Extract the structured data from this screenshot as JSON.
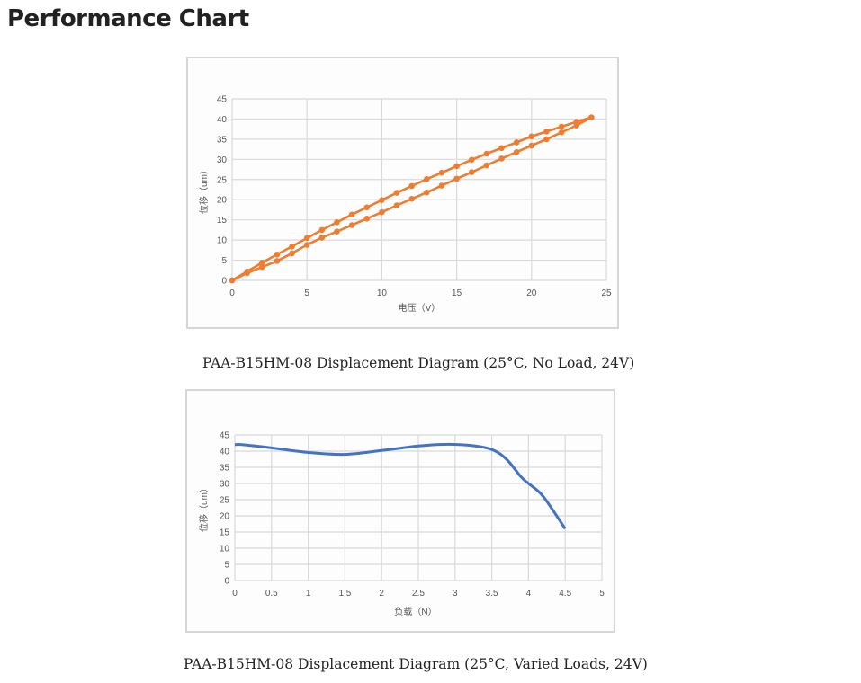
{
  "page_title": "Performance Chart",
  "chart_data": [
    {
      "type": "line",
      "xlabel": "电压（V）",
      "ylabel": "位移（um）",
      "xlim": [
        0,
        25
      ],
      "ylim": [
        0,
        45
      ],
      "xticks": [
        0,
        5,
        10,
        15,
        20,
        25
      ],
      "yticks": [
        0,
        5,
        10,
        15,
        20,
        25,
        30,
        35,
        40,
        45
      ],
      "grid": true,
      "color": "#ED7D31",
      "markers": true,
      "caption": "PAA-B15HM-08 Displacement Diagram (25°C, No Load, 24V)",
      "x": [
        0,
        1,
        2,
        3,
        4,
        5,
        6,
        7,
        8,
        9,
        10,
        11,
        12,
        13,
        14,
        15,
        16,
        17,
        18,
        19,
        20,
        21,
        22,
        23,
        24
      ],
      "series": [
        {
          "values": [
            0,
            2.2,
            4.4,
            6.4,
            8.4,
            10.5,
            12.5,
            14.4,
            16.3,
            18.1,
            19.9,
            21.7,
            23.4,
            25.1,
            26.7,
            28.3,
            29.9,
            31.4,
            32.8,
            34.2,
            35.7,
            36.9,
            38.1,
            39.3,
            40.4
          ]
        },
        {
          "values": [
            0,
            1.8,
            3.3,
            4.8,
            6.7,
            8.8,
            10.6,
            12.1,
            13.7,
            15.3,
            16.9,
            18.6,
            20.2,
            21.8,
            23.5,
            25.2,
            26.8,
            28.5,
            30.2,
            31.8,
            33.4,
            35.0,
            36.7,
            38.4,
            40.4
          ]
        }
      ]
    },
    {
      "type": "line",
      "xlabel": "负载（N）",
      "ylabel": "位移（um）",
      "xlim": [
        0,
        5
      ],
      "ylim": [
        0,
        45
      ],
      "xticks": [
        "0",
        "0.5",
        "1",
        "1.5",
        "2",
        "2.5",
        "3",
        "3.5",
        "4",
        "4.5",
        "5"
      ],
      "yticks": [
        0,
        5,
        10,
        15,
        20,
        25,
        30,
        35,
        40,
        45
      ],
      "grid": true,
      "color": "#4472C4",
      "markers": false,
      "caption": "PAA-B15HM-08 Displacement Diagram (25°C, Varied Loads, 24V)",
      "x": [
        0,
        0.1,
        0.5,
        1,
        1.5,
        2,
        2.5,
        2.85,
        3.2,
        3.5,
        3.7,
        3.9,
        4,
        4.2,
        4.5
      ],
      "series": [
        {
          "values": [
            42,
            42,
            41,
            39.6,
            39,
            40.2,
            41.6,
            42.1,
            41.8,
            40.5,
            37.5,
            32,
            30,
            26,
            16
          ]
        }
      ]
    }
  ]
}
